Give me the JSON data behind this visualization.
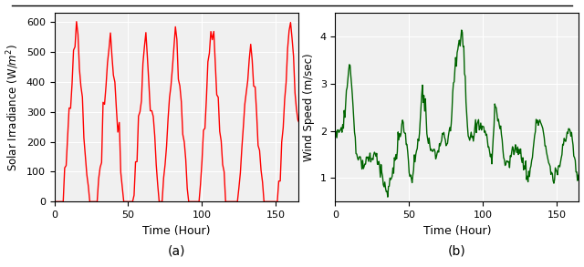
{
  "solar_color": "#ff0000",
  "wind_color": "#006400",
  "solar_ylabel": "Solar Irradiance (W/$m^2$)",
  "wind_ylabel": "Wind Speed (m/sec)",
  "xlabel": "Time (Hour)",
  "label_a": "(a)",
  "label_b": "(b)",
  "solar_ylim": [
    0,
    630
  ],
  "solar_yticks": [
    0,
    100,
    200,
    300,
    400,
    500,
    600
  ],
  "wind_ylim": [
    0.5,
    4.5
  ],
  "wind_yticks": [
    1,
    2,
    3,
    4
  ],
  "xlim": [
    0,
    165
  ],
  "xticks": [
    0,
    50,
    100,
    150
  ],
  "solar_linewidth": 1.0,
  "wind_linewidth": 1.0,
  "figsize": [
    6.4,
    2.93
  ],
  "dpi": 100,
  "grid_color": "#cccccc",
  "bg_color": "#f0f0f0"
}
